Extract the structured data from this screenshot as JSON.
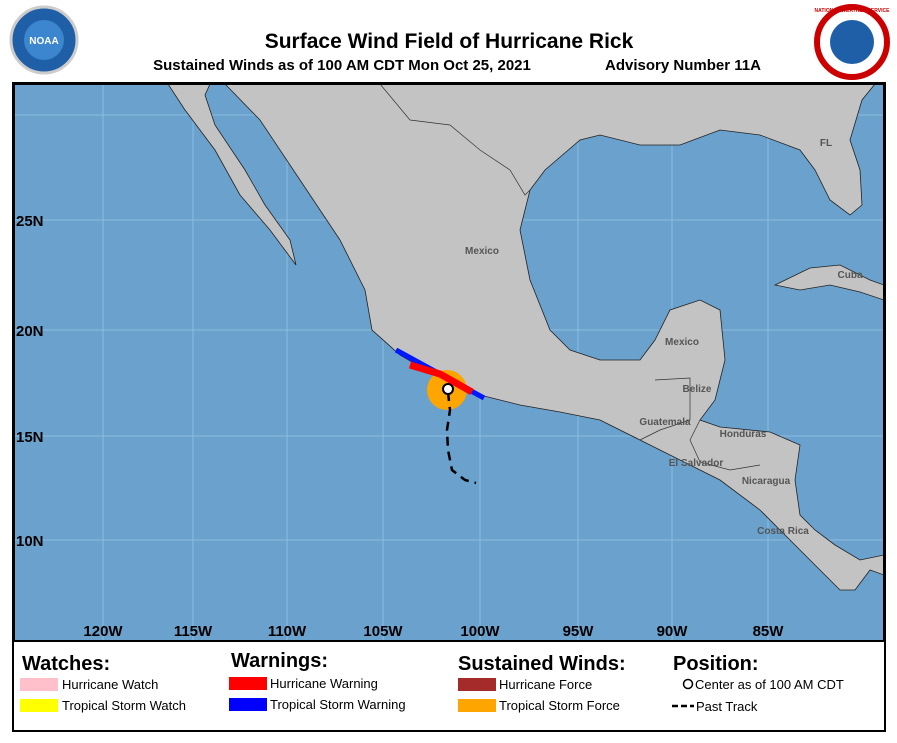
{
  "header": {
    "title": "Surface Wind Field of Hurricane Rick",
    "subtitle": "Sustained Winds as of 100 AM CDT Mon Oct 25, 2021",
    "advisory": "Advisory Number 11A",
    "left_logo": "NOAA",
    "right_logo": "NATIONAL WEATHER SERVICE"
  },
  "map": {
    "lat_labels": [
      "25N",
      "20N",
      "15N",
      "10N"
    ],
    "lon_labels": [
      "120W",
      "115W",
      "110W",
      "105W",
      "100W",
      "95W",
      "90W",
      "85W"
    ],
    "places": [
      "Mexico",
      "FL",
      "Cuba",
      "Mexico",
      "Belize",
      "Guatemala",
      "Honduras",
      "El Salvador",
      "Nicaragua",
      "Costa Rica"
    ]
  },
  "legend": {
    "watches": {
      "title": "Watches:",
      "items": [
        "Hurricane Watch",
        "Tropical Storm Watch"
      ]
    },
    "warnings": {
      "title": "Warnings:",
      "items": [
        "Hurricane Warning",
        "Tropical Storm Warning"
      ]
    },
    "winds": {
      "title": "Sustained Winds:",
      "items": [
        "Hurricane Force",
        "Tropical Storm Force"
      ]
    },
    "position": {
      "title": "Position:",
      "items": [
        "Center as of 100 AM CDT",
        "Past Track"
      ]
    }
  }
}
